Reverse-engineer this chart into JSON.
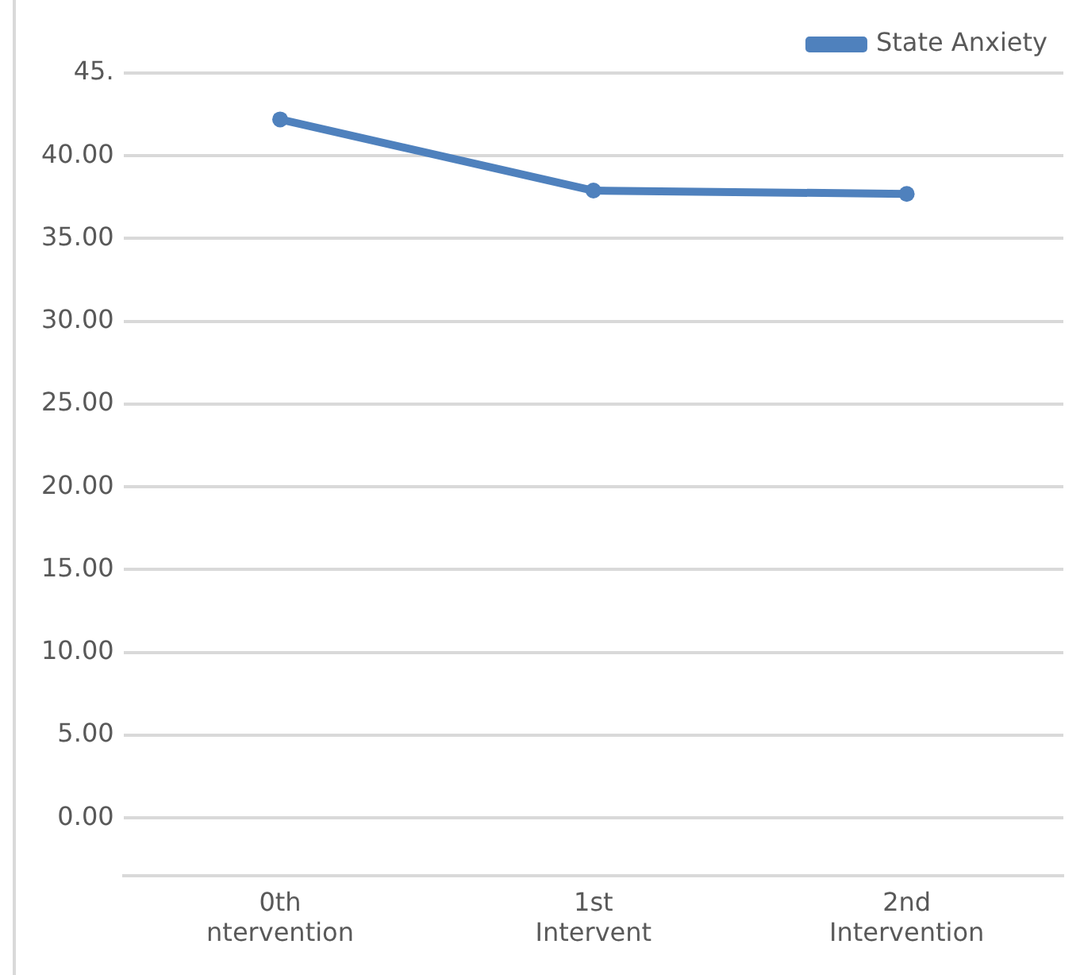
{
  "chart_data": {
    "type": "line",
    "categories": [
      "0th\nntervention",
      "1st\nIntervent",
      "2nd\nIntervention"
    ],
    "series": [
      {
        "name": "State Anxiety",
        "color": "#4f81bd",
        "values": [
          42.2,
          37.9,
          37.7
        ]
      }
    ],
    "ylim": [
      -3.5,
      45
    ],
    "yticks": [
      {
        "value": 45,
        "label": "45."
      },
      {
        "value": 40,
        "label": "40.00"
      },
      {
        "value": 35,
        "label": "35.00"
      },
      {
        "value": 30,
        "label": "30.00"
      },
      {
        "value": 25,
        "label": "25.00"
      },
      {
        "value": 20,
        "label": "20.00"
      },
      {
        "value": 15,
        "label": "15.00"
      },
      {
        "value": 10,
        "label": "10.00"
      },
      {
        "value": 5,
        "label": "5.00"
      },
      {
        "value": 0,
        "label": "0.00"
      }
    ],
    "grid": "y",
    "legend": "top right",
    "marker": "circle",
    "line_style": "solid"
  }
}
